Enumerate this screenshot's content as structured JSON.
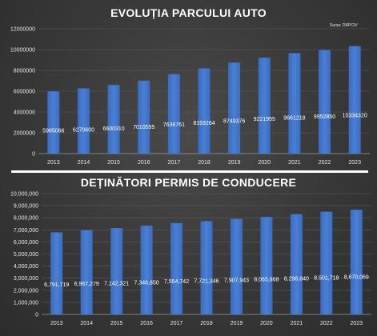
{
  "source_note": "Sursa: DRPCIV",
  "chart_data": [
    {
      "type": "bar",
      "title": "EVOLUȚIA PARCULUI AUTO",
      "categories": [
        "2013",
        "2014",
        "2015",
        "2016",
        "2017",
        "2018",
        "2019",
        "2020",
        "2021",
        "2022",
        "2023"
      ],
      "values": [
        5985066,
        6270600,
        6600310,
        7010595,
        7636761,
        8193264,
        8749376,
        9221955,
        9661218,
        9952850,
        10334320
      ],
      "value_labels": [
        "5985066",
        "6270600",
        "6600310",
        "7010595",
        "7636761",
        "8193264",
        "8749376",
        "9221955",
        "9661218",
        "9952850",
        "10334320"
      ],
      "ylim": [
        0,
        12000000
      ],
      "yticks": [
        0,
        2000000,
        4000000,
        6000000,
        8000000,
        10000000,
        12000000
      ],
      "ytick_labels": [
        "0",
        "2000000",
        "4000000",
        "6000000",
        "8000000",
        "10000000",
        "12000000"
      ],
      "grid": true,
      "bar_color": "#4a7fd4"
    },
    {
      "type": "bar",
      "title": "DEȚINĂTORI PERMIS DE CONDUCERE",
      "categories": [
        "2013",
        "2014",
        "2015",
        "2016",
        "2017",
        "2018",
        "2019",
        "2020",
        "2021",
        "2022",
        "2023"
      ],
      "values": [
        6791719,
        6967279,
        7142321,
        7346850,
        7554742,
        7721346,
        7907943,
        8065868,
        8298840,
        8501718,
        8670069
      ],
      "value_labels": [
        "6,791,719",
        "6,967,279",
        "7,142,321",
        "7,346,850",
        "7,554,742",
        "7,721,346",
        "7,907,943",
        "8,065,868",
        "8,298,840",
        "8,501,718",
        "8,670,069"
      ],
      "ylim": [
        0,
        10000000
      ],
      "yticks": [
        0,
        1000000,
        2000000,
        3000000,
        4000000,
        5000000,
        6000000,
        7000000,
        8000000,
        9000000,
        10000000
      ],
      "ytick_labels": [
        "0",
        "1,000,000",
        "2,000,000",
        "3,000,000",
        "4,000,000",
        "5,000,000",
        "6,000,000",
        "7,000,000",
        "8,000,000",
        "9,000,000",
        "10,000,000"
      ],
      "grid": true,
      "bar_color": "#4a7fd4"
    }
  ]
}
